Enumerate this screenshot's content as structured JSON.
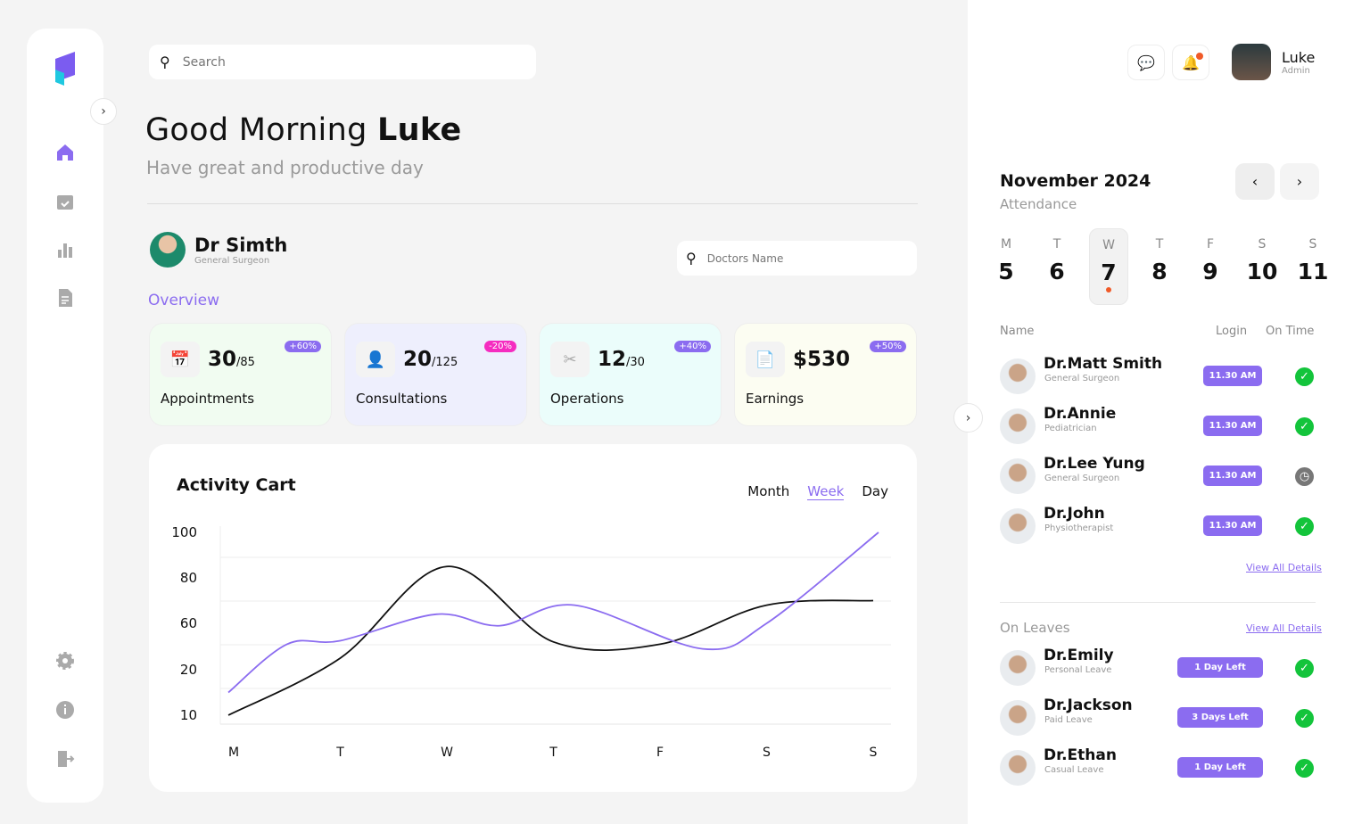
{
  "search": {
    "placeholder": "Search"
  },
  "greeting": {
    "prefix": "Good Morning",
    "name": "Luke",
    "subtitle": "Have great and productive day"
  },
  "doctor": {
    "name": "Dr Simth",
    "role": "General Surgeon",
    "search_placeholder": "Doctors Name"
  },
  "overview_label": "Overview",
  "cards": [
    {
      "value": "30",
      "total": "/85",
      "badge": "+60%",
      "label": "Appointments",
      "bg": "#f1fcf1",
      "badge_color": "#8b6cf0"
    },
    {
      "value": "20",
      "total": "/125",
      "badge": "-20%",
      "label": "Consultations",
      "bg": "#eeeffd",
      "badge_color": "#f52cc0"
    },
    {
      "value": "12",
      "total": "/30",
      "badge": "+40%",
      "label": "Operations",
      "bg": "#ebfdfb",
      "badge_color": "#8b6cf0"
    },
    {
      "value": "$530",
      "total": "",
      "badge": "+50%",
      "label": "Earnings",
      "bg": "#fcfdf2",
      "badge_color": "#8b6cf0"
    }
  ],
  "chart_data": {
    "type": "line",
    "title": "Activity Cart",
    "tabs": [
      "Month",
      "Week",
      "Day"
    ],
    "active_tab": "Week",
    "categories": [
      "M",
      "T",
      "W",
      "T",
      "F",
      "S",
      "S"
    ],
    "yticks": [
      100,
      80,
      60,
      20,
      10
    ],
    "series": [
      {
        "name": "black",
        "color": "#111111",
        "x": [
          -0.05,
          1,
          2,
          3,
          4,
          5,
          6
        ],
        "values": [
          10,
          30,
          85,
          44,
          42,
          68,
          70
        ]
      },
      {
        "name": "purple",
        "color": "#8b6cf0",
        "x": [
          -0.05,
          0.5,
          1,
          1.9,
          2.5,
          3.2,
          4.4,
          5,
          6.05
        ],
        "values": [
          15,
          42,
          45,
          64,
          58,
          68,
          38,
          60,
          100
        ]
      }
    ]
  },
  "user": {
    "name": "Luke",
    "role": "Admin"
  },
  "calendar": {
    "month": "November 2024",
    "subtitle": "Attendance",
    "days": [
      {
        "d": "M",
        "n": "5"
      },
      {
        "d": "T",
        "n": "6"
      },
      {
        "d": "W",
        "n": "7"
      },
      {
        "d": "T",
        "n": "8"
      },
      {
        "d": "F",
        "n": "9"
      },
      {
        "d": "S",
        "n": "10"
      },
      {
        "d": "S",
        "n": "11"
      }
    ],
    "selected": 2
  },
  "attendance": {
    "headers": {
      "name": "Name",
      "login": "Login",
      "on_time": "On Time"
    },
    "rows": [
      {
        "name": "Dr.Matt Smith",
        "role": "General Surgeon",
        "login": "11.30 AM",
        "status": "on-time"
      },
      {
        "name": "Dr.Annie",
        "role": "Pediatrician",
        "login": "11.30 AM",
        "status": "on-time"
      },
      {
        "name": "Dr.Lee Yung",
        "role": "General Surgeon",
        "login": "11.30 AM",
        "status": "late"
      },
      {
        "name": "Dr.John",
        "role": "Physiotherapist",
        "login": "11.30 AM",
        "status": "on-time"
      }
    ],
    "view_all": "View All Details"
  },
  "leaves": {
    "title": "On Leaves",
    "view_all": "View All Details",
    "rows": [
      {
        "name": "Dr.Emily",
        "type": "Personal Leave",
        "left": "1 Day Left"
      },
      {
        "name": "Dr.Jackson",
        "type": "Paid Leave",
        "left": "3 Days Left"
      },
      {
        "name": "Dr.Ethan",
        "type": "Casual Leave",
        "left": "1 Day Left"
      }
    ]
  }
}
